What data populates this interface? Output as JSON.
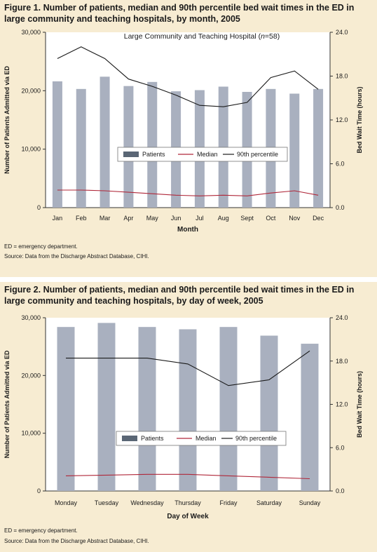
{
  "figures": [
    {
      "title": "Figure 1. Number of patients, median and 90th percentile bed wait times in the ED in large community and teaching hospitals, by month, 2005",
      "note": "ED = emergency department.",
      "source": "Source: Data from the Discharge Abstract Database, CIHI.",
      "colors": {
        "panel": "#f7ecd2",
        "plot_bg": "#ffffff",
        "bar": "#a9b0bf",
        "median": "#b0283a",
        "p90": "#1a1a1a",
        "legend_bar": "#5a6675"
      }
    },
    {
      "title": "Figure 2. Number of patients, median and 90th percentile bed wait times in the ED in large community and teaching hospitals, by day of week, 2005",
      "note": "ED = emergency department.",
      "source": "Source: Data from the Discharge Abstract Database, CIHI.",
      "colors": {
        "panel": "#f7ecd2",
        "plot_bg": "#ffffff",
        "bar": "#a9b0bf",
        "median": "#b0283a",
        "p90": "#1a1a1a",
        "legend_bar": "#5a6675"
      }
    }
  ],
  "chart_data": [
    {
      "type": "bar",
      "title": "Large Community and Teaching Hospital (n=58)",
      "title_parts": [
        "Large Community and Teaching Hospital (",
        "n",
        "=58)"
      ],
      "xlabel": "Month",
      "ylabel": "Number of Patients Admitted via ED",
      "y2label": "Bed Wait Time (hours)",
      "categories": [
        "Jan",
        "Feb",
        "Mar",
        "Apr",
        "May",
        "Jun",
        "Jul",
        "Aug",
        "Sept",
        "Oct",
        "Nov",
        "Dec"
      ],
      "ylim": [
        0,
        30000
      ],
      "yticks": [
        "0",
        "10,000",
        "20,000",
        "30,000"
      ],
      "y2lim": [
        0,
        24
      ],
      "y2ticks": [
        "0.0",
        "6.0",
        "12.0",
        "18.0",
        "24.0"
      ],
      "series": [
        {
          "name": "Patients",
          "kind": "bar",
          "axis": "left",
          "values": [
            21600,
            20300,
            22400,
            20800,
            21500,
            19900,
            20100,
            20700,
            19800,
            20300,
            19500,
            20300
          ]
        },
        {
          "name": "Median",
          "kind": "line",
          "axis": "right",
          "values": [
            2.4,
            2.4,
            2.3,
            2.1,
            1.9,
            1.7,
            1.6,
            1.7,
            1.6,
            2.0,
            2.3,
            1.7
          ]
        },
        {
          "name": "90th percentile",
          "kind": "line",
          "axis": "right",
          "values": [
            20.4,
            22.0,
            20.4,
            17.6,
            16.6,
            15.4,
            14.0,
            13.8,
            14.4,
            17.8,
            18.7,
            16.2
          ]
        }
      ],
      "legend": [
        "Patients",
        "Median",
        "90th percentile"
      ],
      "legend_position": "center",
      "grid": false
    },
    {
      "type": "bar",
      "title": "",
      "xlabel": "Day of Week",
      "ylabel": "Number of Patients Admitted via ED",
      "y2label": "Bed Wait Time (hours)",
      "categories": [
        "Monday",
        "Tuesday",
        "Wednesday",
        "Thursday",
        "Friday",
        "Saturday",
        "Sunday"
      ],
      "ylim": [
        0,
        30000
      ],
      "yticks": [
        "0",
        "10,000",
        "20,000",
        "30,000"
      ],
      "y2lim": [
        0,
        24
      ],
      "y2ticks": [
        "0.0",
        "6.0",
        "12.0",
        "18.0",
        "24.0"
      ],
      "series": [
        {
          "name": "Patients",
          "kind": "bar",
          "axis": "left",
          "values": [
            28400,
            29100,
            28400,
            28000,
            28400,
            26900,
            25500
          ]
        },
        {
          "name": "Median",
          "kind": "line",
          "axis": "right",
          "values": [
            2.1,
            2.2,
            2.3,
            2.3,
            2.1,
            1.9,
            1.7
          ]
        },
        {
          "name": "90th percentile",
          "kind": "line",
          "axis": "right",
          "values": [
            18.4,
            18.4,
            18.4,
            17.6,
            14.6,
            15.4,
            19.4
          ]
        }
      ],
      "legend": [
        "Patients",
        "Median",
        "90th percentile"
      ],
      "legend_position": "center",
      "grid": false
    }
  ]
}
